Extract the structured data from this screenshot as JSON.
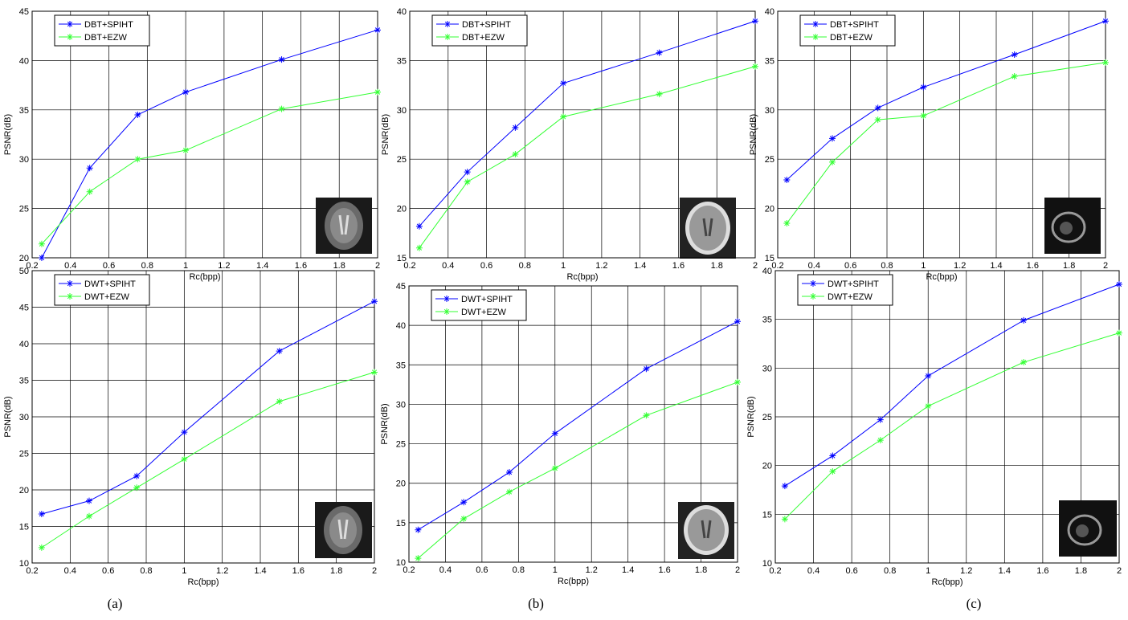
{
  "chart_data": [
    {
      "type": "line",
      "xlabel": "Rc(bpp)",
      "ylabel": "PSNR(dB)",
      "x": [
        0.25,
        0.5,
        0.75,
        1,
        1.5,
        2
      ],
      "xlim": [
        0.2,
        2
      ],
      "xticks": [
        0.2,
        0.4,
        0.6,
        0.8,
        1,
        1.2,
        1.4,
        1.6,
        1.8,
        2
      ],
      "ylim": [
        20,
        45
      ],
      "yticks": [
        20,
        25,
        30,
        35,
        40,
        45
      ],
      "grid": true,
      "legend": "upper left",
      "series": [
        {
          "name": "DBT+SPIHT",
          "color": "#0000ff",
          "values": [
            20.0,
            29.1,
            34.5,
            36.8,
            40.1,
            43.1
          ]
        },
        {
          "name": "DBT+EZW",
          "color": "#33ff33",
          "values": [
            21.4,
            26.7,
            30.0,
            30.9,
            35.1,
            36.8
          ]
        }
      ]
    },
    {
      "type": "line",
      "xlabel": "Rc(bpp)",
      "ylabel": "PSNR(dB)",
      "x": [
        0.25,
        0.5,
        0.75,
        1,
        1.5,
        2
      ],
      "xlim": [
        0.2,
        2
      ],
      "xticks": [
        0.2,
        0.4,
        0.6,
        0.8,
        1,
        1.2,
        1.4,
        1.6,
        1.8,
        2
      ],
      "ylim": [
        15,
        40
      ],
      "yticks": [
        15,
        20,
        25,
        30,
        35,
        40
      ],
      "grid": true,
      "legend": "upper left",
      "series": [
        {
          "name": "DBT+SPIHT",
          "color": "#0000ff",
          "values": [
            18.2,
            23.7,
            28.2,
            32.7,
            35.8,
            39.0
          ]
        },
        {
          "name": "DBT+EZW",
          "color": "#33ff33",
          "values": [
            16.0,
            22.7,
            25.5,
            29.3,
            31.6,
            34.4
          ]
        }
      ]
    },
    {
      "type": "line",
      "xlabel": "Rc(bpp)",
      "ylabel": "PSNR(dB)",
      "x": [
        0.25,
        0.5,
        0.75,
        1,
        1.5,
        2
      ],
      "xlim": [
        0.2,
        2
      ],
      "xticks": [
        0.2,
        0.4,
        0.6,
        0.8,
        1,
        1.2,
        1.4,
        1.6,
        1.8,
        2
      ],
      "ylim": [
        15,
        40
      ],
      "yticks": [
        15,
        20,
        25,
        30,
        35,
        40
      ],
      "grid": true,
      "legend": "upper left",
      "series": [
        {
          "name": "DBT+SPIHT",
          "color": "#0000ff",
          "values": [
            22.9,
            27.1,
            30.2,
            32.3,
            35.6,
            39.0
          ]
        },
        {
          "name": "DBT+EZW",
          "color": "#33ff33",
          "values": [
            18.5,
            24.7,
            29.0,
            29.4,
            33.4,
            34.8
          ]
        }
      ]
    },
    {
      "type": "line",
      "xlabel": "Rc(bpp)",
      "ylabel": "PSNR(dB)",
      "x": [
        0.25,
        0.5,
        0.75,
        1,
        1.5,
        2
      ],
      "xlim": [
        0.2,
        2
      ],
      "xticks": [
        0.2,
        0.4,
        0.6,
        0.8,
        1,
        1.2,
        1.4,
        1.6,
        1.8,
        2
      ],
      "ylim": [
        10,
        50
      ],
      "yticks": [
        10,
        15,
        20,
        25,
        30,
        35,
        40,
        45,
        50
      ],
      "grid": true,
      "legend": "upper left",
      "series": [
        {
          "name": "DWT+SPIHT",
          "color": "#0000ff",
          "values": [
            16.7,
            18.5,
            21.9,
            27.9,
            39.0,
            45.8
          ]
        },
        {
          "name": "DWT+EZW",
          "color": "#33ff33",
          "values": [
            12.1,
            16.4,
            20.3,
            24.2,
            32.1,
            36.1
          ]
        }
      ]
    },
    {
      "type": "line",
      "xlabel": "Rc(bpp)",
      "ylabel": "PSNR(dB)",
      "x": [
        0.25,
        0.5,
        0.75,
        1,
        1.5,
        2
      ],
      "xlim": [
        0.2,
        2
      ],
      "xticks": [
        0.2,
        0.4,
        0.6,
        0.8,
        1,
        1.2,
        1.4,
        1.6,
        1.8,
        2
      ],
      "ylim": [
        10,
        45
      ],
      "yticks": [
        10,
        15,
        20,
        25,
        30,
        35,
        40,
        45
      ],
      "grid": true,
      "legend": "upper left",
      "series": [
        {
          "name": "DWT+SPIHT",
          "color": "#0000ff",
          "values": [
            14.1,
            17.6,
            21.4,
            26.3,
            34.5,
            40.5
          ]
        },
        {
          "name": "DWT+EZW",
          "color": "#33ff33",
          "values": [
            10.5,
            15.5,
            18.9,
            21.9,
            28.6,
            32.8
          ]
        }
      ]
    },
    {
      "type": "line",
      "xlabel": "Rc(bpp)",
      "ylabel": "PSNR(dB)",
      "x": [
        0.25,
        0.5,
        0.75,
        1,
        1.5,
        2
      ],
      "xlim": [
        0.2,
        2
      ],
      "xticks": [
        0.2,
        0.4,
        0.6,
        0.8,
        1,
        1.2,
        1.4,
        1.6,
        1.8,
        2
      ],
      "ylim": [
        10,
        40
      ],
      "yticks": [
        10,
        15,
        20,
        25,
        30,
        35,
        40
      ],
      "grid": true,
      "legend": "upper left",
      "series": [
        {
          "name": "DWT+SPIHT",
          "color": "#0000ff",
          "values": [
            17.9,
            21.0,
            24.7,
            29.2,
            34.9,
            38.6
          ]
        },
        {
          "name": "DWT+EZW",
          "color": "#33ff33",
          "values": [
            14.5,
            19.4,
            22.6,
            26.1,
            30.6,
            33.6
          ]
        }
      ]
    }
  ],
  "captions": [
    "(a)",
    "(b)",
    "(c)"
  ]
}
